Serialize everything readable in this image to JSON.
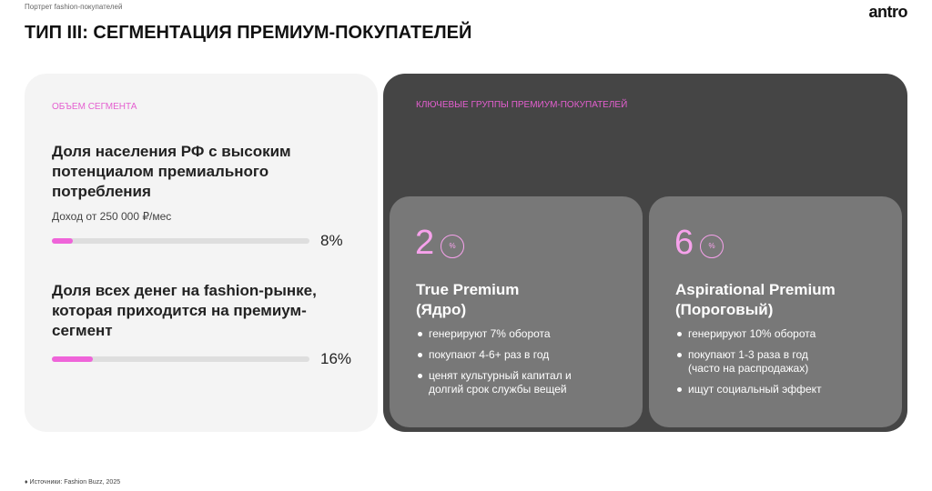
{
  "header": {
    "subtitle": "Портрет fashion-покупателей",
    "title": "ТИП III: СЕГМЕНТАЦИЯ ПРЕМИУМ-ПОКУПАТЕЛЕЙ",
    "logo": "antro"
  },
  "segment": {
    "label": "ОБЪЕМ СЕГМЕНТА",
    "metrics": [
      {
        "text": "Доля населения РФ с высоким потенциалом премиального потребления",
        "note": "Доход от 250 000 ₽/мес",
        "value": 8,
        "label": "8%"
      },
      {
        "text": "Доля всех денег на fashion-рынке, которая приходится на премиум-сегмент",
        "value": 16,
        "label": "16%"
      }
    ]
  },
  "groups": {
    "label": "КЛЮЧЕВЫЕ ГРУППЫ ПРЕМИУМ-ПОКУПАТЕЛЕЙ",
    "cards": [
      {
        "value": 2,
        "unit": "%",
        "name": "True Premium",
        "kind": "(Ядро)",
        "bullets": [
          "генерируют 7% оборота",
          "покупают 4-6+ раз в год",
          "ценят культурный капитал и долгий срок службы вещей"
        ]
      },
      {
        "value": 6,
        "unit": "%",
        "name": "Aspirational Premium",
        "kind": "(Пороговый)",
        "bullets": [
          "генерируют 10% оборота",
          "покупают 1-3 раза в год (часто на распродажах)",
          "ищут социальный эффект"
        ]
      }
    ]
  },
  "footer": {
    "label": "Источники:",
    "source": "Fashion Buzz, 2025"
  }
}
